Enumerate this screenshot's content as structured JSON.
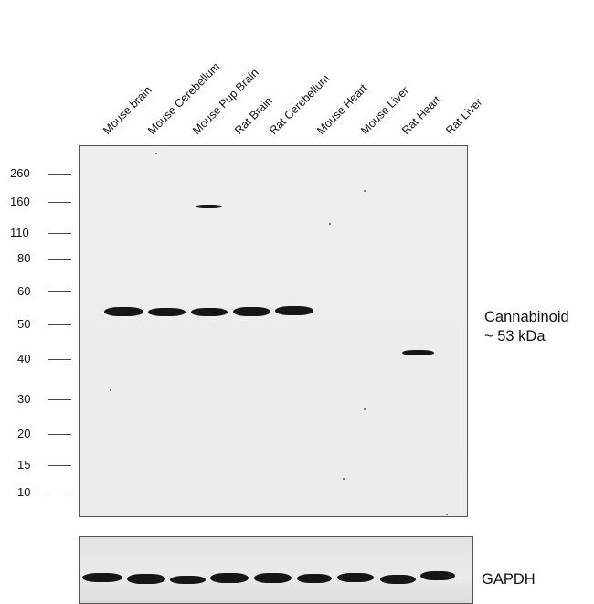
{
  "lanes": [
    "Mouse brain",
    "Mouse Cerebellum",
    "Mouse Pup Brain",
    "Rat Brain",
    "Rat Cerebellum",
    "Mouse Heart",
    "Mouse Liver",
    "Rat Heart",
    "Rat Liver"
  ],
  "markers": [
    "260",
    "160",
    "110",
    "80",
    "60",
    "50",
    "40",
    "30",
    "20",
    "15",
    "10"
  ],
  "target_label": {
    "line1": "Cannabinoid",
    "line2": "~ 53 kDa"
  },
  "loading_control_label": "GAPDH"
}
